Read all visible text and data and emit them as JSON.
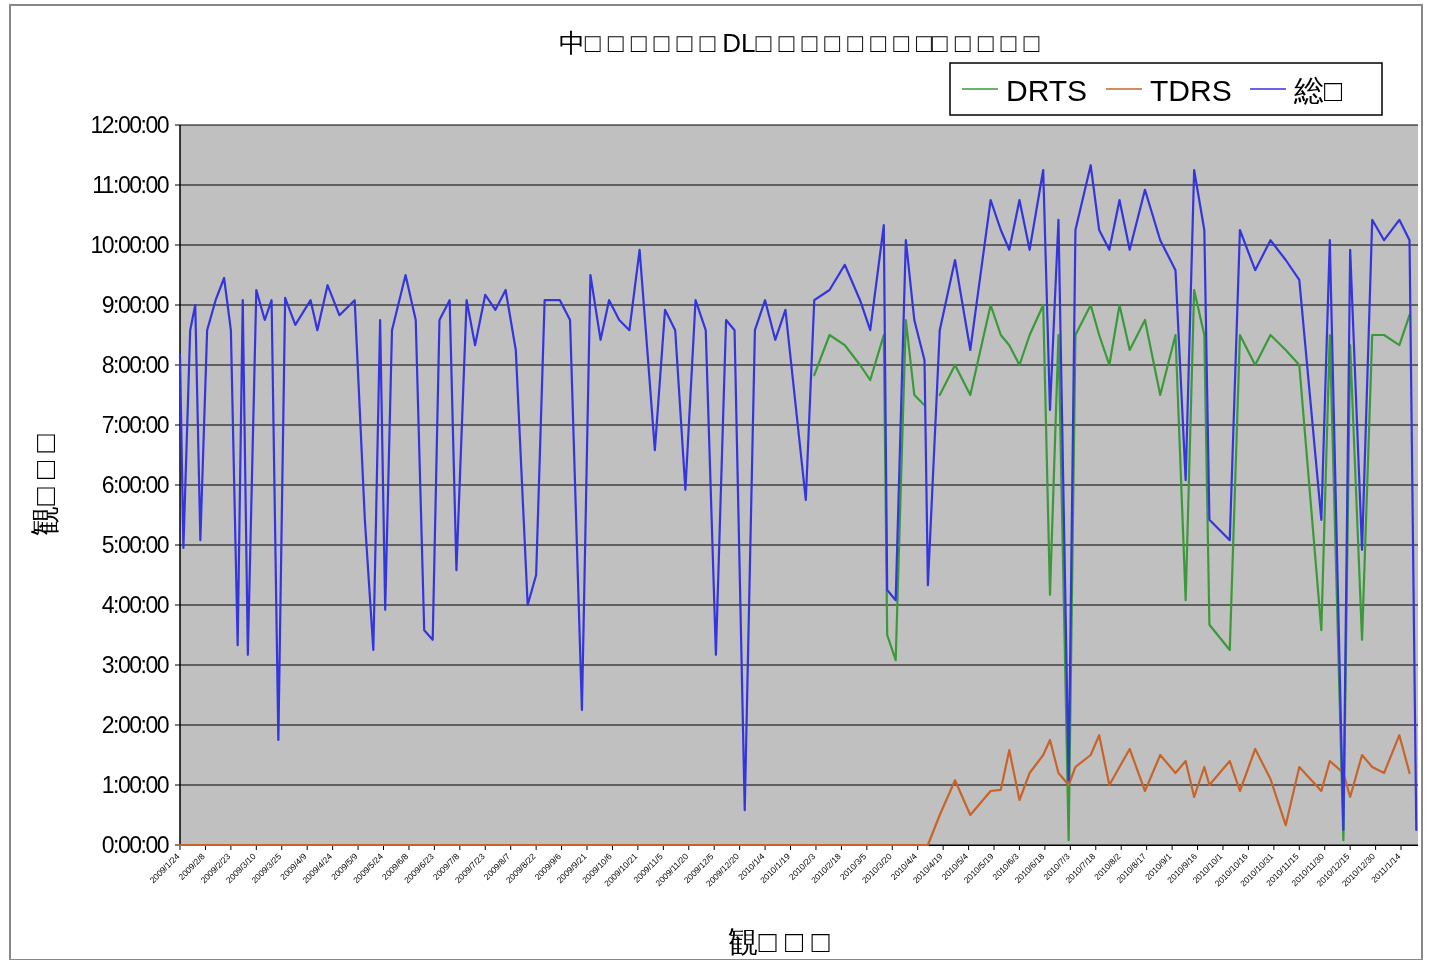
{
  "chart_data": {
    "type": "line",
    "title": "中□ □ □ □ □ □ DL□ □ □ □ □ □ □ □□ □ □ □ □",
    "xlabel": "観□ □ □",
    "ylabel": "観□ □ □",
    "x": [
      "2009-01-24",
      "2009-01-26",
      "2009-01-30",
      "2009-02-02",
      "2009-02-05",
      "2009-02-09",
      "2009-02-14",
      "2009-02-19",
      "2009-02-23",
      "2009-02-27",
      "2009-03-02",
      "2009-03-05",
      "2009-03-10",
      "2009-03-15",
      "2009-03-19",
      "2009-03-23",
      "2009-03-27",
      "2009-04-02",
      "2009-04-11",
      "2009-04-15",
      "2009-04-21",
      "2009-04-28",
      "2009-05-07",
      "2009-05-13",
      "2009-05-18",
      "2009-05-22",
      "2009-05-25",
      "2009-05-29",
      "2009-06-06",
      "2009-06-12",
      "2009-06-17",
      "2009-06-22",
      "2009-06-26",
      "2009-07-02",
      "2009-07-06",
      "2009-07-12",
      "2009-07-17",
      "2009-07-23",
      "2009-07-29",
      "2009-08-04",
      "2009-08-10",
      "2009-08-17",
      "2009-08-22",
      "2009-08-27",
      "2009-09-05",
      "2009-09-11",
      "2009-09-18",
      "2009-09-23",
      "2009-09-29",
      "2009-10-04",
      "2009-10-10",
      "2009-10-16",
      "2009-10-22",
      "2009-10-27",
      "2009-10-31",
      "2009-11-06",
      "2009-11-12",
      "2009-11-18",
      "2009-11-24",
      "2009-11-30",
      "2009-12-06",
      "2009-12-12",
      "2009-12-17",
      "2009-12-23",
      "2009-12-29",
      "2010-01-04",
      "2010-01-10",
      "2010-01-16",
      "2010-01-28",
      "2010-02-02",
      "2010-02-11",
      "2010-02-20",
      "2010-03-01",
      "2010-03-07",
      "2010-03-15",
      "2010-03-17",
      "2010-03-22",
      "2010-03-28",
      "2010-04-02",
      "2010-04-08",
      "2010-04-10",
      "2010-04-17",
      "2010-04-26",
      "2010-05-05",
      "2010-05-17",
      "2010-05-23",
      "2010-05-28",
      "2010-06-03",
      "2010-06-09",
      "2010-06-17",
      "2010-06-21",
      "2010-06-26",
      "2010-07-02",
      "2010-07-06",
      "2010-07-15",
      "2010-07-20",
      "2010-07-26",
      "2010-08-01",
      "2010-08-07",
      "2010-08-16",
      "2010-08-25",
      "2010-09-03",
      "2010-09-09",
      "2010-09-14",
      "2010-09-20",
      "2010-09-23",
      "2010-10-05",
      "2010-10-11",
      "2010-10-20",
      "2010-10-29",
      "2010-11-07",
      "2010-11-15",
      "2010-11-28",
      "2010-12-03",
      "2010-12-11",
      "2010-12-15",
      "2010-12-22",
      "2010-12-28",
      "2011-01-04",
      "2011-01-13",
      "2011-01-19",
      "2011-01-23"
    ],
    "series": [
      {
        "name": "DRTS",
        "color": "#3a9a3a",
        "values": [
          null,
          null,
          null,
          null,
          null,
          null,
          null,
          null,
          null,
          null,
          null,
          null,
          null,
          null,
          null,
          null,
          null,
          null,
          null,
          null,
          null,
          null,
          null,
          null,
          null,
          null,
          null,
          null,
          null,
          null,
          null,
          null,
          null,
          null,
          null,
          null,
          null,
          null,
          null,
          null,
          null,
          null,
          null,
          null,
          null,
          null,
          null,
          null,
          null,
          null,
          null,
          null,
          null,
          null,
          null,
          null,
          null,
          null,
          null,
          null,
          null,
          null,
          null,
          null,
          null,
          null,
          null,
          null,
          null,
          7.83,
          8.5,
          8.33,
          8.0,
          7.75,
          8.5,
          3.5,
          3.08,
          8.75,
          7.5,
          7.33,
          null,
          7.5,
          8.0,
          7.5,
          9.0,
          8.5,
          8.33,
          8.0,
          8.5,
          9.0,
          4.17,
          8.5,
          0.08,
          8.5,
          9.0,
          8.5,
          8.0,
          9.0,
          8.25,
          8.75,
          7.5,
          8.5,
          4.08,
          9.25,
          8.5,
          3.67,
          3.25,
          8.5,
          8.0,
          8.5,
          8.25,
          8.0,
          3.58,
          8.5,
          0.08,
          8.33,
          3.42,
          8.5,
          8.5,
          8.33,
          8.83,
          null
        ]
      },
      {
        "name": "TDRS",
        "color": "#c8642a",
        "values": [
          0,
          0,
          0,
          0,
          0,
          0,
          0,
          0,
          0,
          0,
          0,
          0,
          0,
          0,
          0,
          0,
          0,
          0,
          0,
          0,
          0,
          0,
          0,
          0,
          0,
          0,
          0,
          0,
          0,
          0,
          0,
          0,
          0,
          0,
          0,
          0,
          0,
          0,
          0,
          0,
          0,
          0,
          0,
          0,
          0,
          0,
          0,
          0,
          0,
          0,
          0,
          0,
          0,
          0,
          0,
          0,
          0,
          0,
          0,
          0,
          0,
          0,
          0,
          0,
          0,
          0,
          0,
          0,
          0,
          0,
          0,
          0,
          0,
          0,
          0,
          0,
          0,
          0,
          0,
          0,
          0,
          0.5,
          1.08,
          0.5,
          0.9,
          0.92,
          1.58,
          0.75,
          1.2,
          1.5,
          1.75,
          1.2,
          1.0,
          1.3,
          1.5,
          1.83,
          1.0,
          1.3,
          1.6,
          0.9,
          1.5,
          1.2,
          1.4,
          0.8,
          1.3,
          1.0,
          1.4,
          0.9,
          1.6,
          1.1,
          0.33,
          1.3,
          0.9,
          1.4,
          1.2,
          0.8,
          1.5,
          1.3,
          1.2,
          1.83,
          1.2,
          null
        ]
      },
      {
        "name": "総□",
        "color": "#3535e0",
        "values": [
          8.17,
          4.95,
          8.58,
          9.0,
          5.08,
          8.58,
          9.08,
          9.45,
          8.58,
          3.33,
          9.08,
          3.17,
          9.25,
          8.75,
          9.08,
          1.75,
          9.12,
          8.67,
          9.08,
          8.58,
          9.33,
          8.83,
          9.08,
          5.42,
          3.25,
          8.75,
          3.92,
          8.58,
          9.5,
          8.75,
          3.58,
          3.42,
          8.75,
          9.08,
          4.58,
          9.08,
          8.33,
          9.17,
          8.92,
          9.25,
          8.25,
          4.0,
          4.5,
          9.08,
          9.08,
          8.75,
          2.25,
          9.5,
          8.42,
          9.08,
          8.75,
          8.58,
          9.92,
          8.08,
          6.58,
          8.92,
          8.58,
          5.92,
          9.08,
          8.58,
          3.17,
          8.75,
          8.58,
          0.58,
          8.58,
          9.08,
          8.42,
          8.92,
          5.75,
          9.08,
          9.25,
          9.67,
          9.08,
          8.58,
          10.33,
          4.25,
          4.08,
          10.08,
          8.75,
          8.08,
          4.33,
          8.58,
          9.75,
          8.25,
          10.75,
          10.25,
          9.92,
          10.75,
          9.92,
          11.25,
          7.25,
          10.42,
          1.08,
          10.25,
          11.33,
          10.25,
          9.92,
          10.75,
          9.92,
          10.92,
          10.08,
          9.58,
          6.08,
          11.25,
          10.25,
          5.42,
          5.08,
          10.25,
          9.58,
          10.08,
          9.75,
          9.42,
          5.42,
          10.08,
          0.25,
          9.92,
          4.92,
          10.42,
          10.08,
          10.42,
          10.08,
          0.25
        ]
      }
    ],
    "xlim": [
      "2009-01-24",
      "2011-01-24"
    ],
    "xticks": [
      {
        "value": "2009-01-24",
        "label": "2009/1/24"
      },
      {
        "value": "2009-02-08",
        "label": "2009/2/8"
      },
      {
        "value": "2009-02-23",
        "label": "2009/2/23"
      },
      {
        "value": "2009-03-10",
        "label": "2009/3/10"
      },
      {
        "value": "2009-03-25",
        "label": "2009/3/25"
      },
      {
        "value": "2009-04-09",
        "label": "2009/4/9"
      },
      {
        "value": "2009-04-24",
        "label": "2009/4/24"
      },
      {
        "value": "2009-05-09",
        "label": "2009/5/9"
      },
      {
        "value": "2009-05-24",
        "label": "2009/5/24"
      },
      {
        "value": "2009-06-08",
        "label": "2009/6/8"
      },
      {
        "value": "2009-06-23",
        "label": "2009/6/23"
      },
      {
        "value": "2009-07-08",
        "label": "2009/7/8"
      },
      {
        "value": "2009-07-23",
        "label": "2009/7/23"
      },
      {
        "value": "2009-08-07",
        "label": "2009/8/7"
      },
      {
        "value": "2009-08-22",
        "label": "2009/8/22"
      },
      {
        "value": "2009-09-06",
        "label": "2009/9/6"
      },
      {
        "value": "2009-09-21",
        "label": "2009/9/21"
      },
      {
        "value": "2009-10-06",
        "label": "2009/10/6"
      },
      {
        "value": "2009-10-21",
        "label": "2009/10/21"
      },
      {
        "value": "2009-11-05",
        "label": "2009/11/5"
      },
      {
        "value": "2009-11-20",
        "label": "2009/11/20"
      },
      {
        "value": "2009-12-05",
        "label": "2009/12/5"
      },
      {
        "value": "2009-12-20",
        "label": "2009/12/20"
      },
      {
        "value": "2010-01-04",
        "label": "2010/1/4"
      },
      {
        "value": "2010-01-19",
        "label": "2010/1/19"
      },
      {
        "value": "2010-02-03",
        "label": "2010/2/3"
      },
      {
        "value": "2010-02-18",
        "label": "2010/2/18"
      },
      {
        "value": "2010-03-05",
        "label": "2010/3/5"
      },
      {
        "value": "2010-03-20",
        "label": "2010/3/20"
      },
      {
        "value": "2010-04-04",
        "label": "2010/4/4"
      },
      {
        "value": "2010-04-19",
        "label": "2010/4/19"
      },
      {
        "value": "2010-05-04",
        "label": "2010/5/4"
      },
      {
        "value": "2010-05-19",
        "label": "2010/5/19"
      },
      {
        "value": "2010-06-03",
        "label": "2010/6/3"
      },
      {
        "value": "2010-06-18",
        "label": "2010/6/18"
      },
      {
        "value": "2010-07-03",
        "label": "2010/7/3"
      },
      {
        "value": "2010-07-18",
        "label": "2010/7/18"
      },
      {
        "value": "2010-08-02",
        "label": "2010/8/2"
      },
      {
        "value": "2010-08-17",
        "label": "2010/8/17"
      },
      {
        "value": "2010-09-01",
        "label": "2010/9/1"
      },
      {
        "value": "2010-09-16",
        "label": "2010/9/16"
      },
      {
        "value": "2010-10-01",
        "label": "2010/10/1"
      },
      {
        "value": "2010-10-16",
        "label": "2010/10/16"
      },
      {
        "value": "2010-10-31",
        "label": "2010/10/31"
      },
      {
        "value": "2010-11-15",
        "label": "2010/11/15"
      },
      {
        "value": "2010-11-30",
        "label": "2010/11/30"
      },
      {
        "value": "2010-12-15",
        "label": "2010/12/15"
      },
      {
        "value": "2010-12-30",
        "label": "2010/12/30"
      },
      {
        "value": "2011-01-14",
        "label": "2011/1/14"
      }
    ],
    "ylim": [
      0,
      12
    ],
    "yticks": [
      {
        "value": 0,
        "label": "0:00:00"
      },
      {
        "value": 1,
        "label": "1:00:00"
      },
      {
        "value": 2,
        "label": "2:00:00"
      },
      {
        "value": 3,
        "label": "3:00:00"
      },
      {
        "value": 4,
        "label": "4:00:00"
      },
      {
        "value": 5,
        "label": "5:00:00"
      },
      {
        "value": 6,
        "label": "6:00:00"
      },
      {
        "value": 7,
        "label": "7:00:00"
      },
      {
        "value": 8,
        "label": "8:00:00"
      },
      {
        "value": 9,
        "label": "9:00:00"
      },
      {
        "value": 10,
        "label": "10:00:00"
      },
      {
        "value": 11,
        "label": "11:00:00"
      },
      {
        "value": 12,
        "label": "12:00:00"
      }
    ],
    "grid": "y",
    "legend": "top right"
  }
}
